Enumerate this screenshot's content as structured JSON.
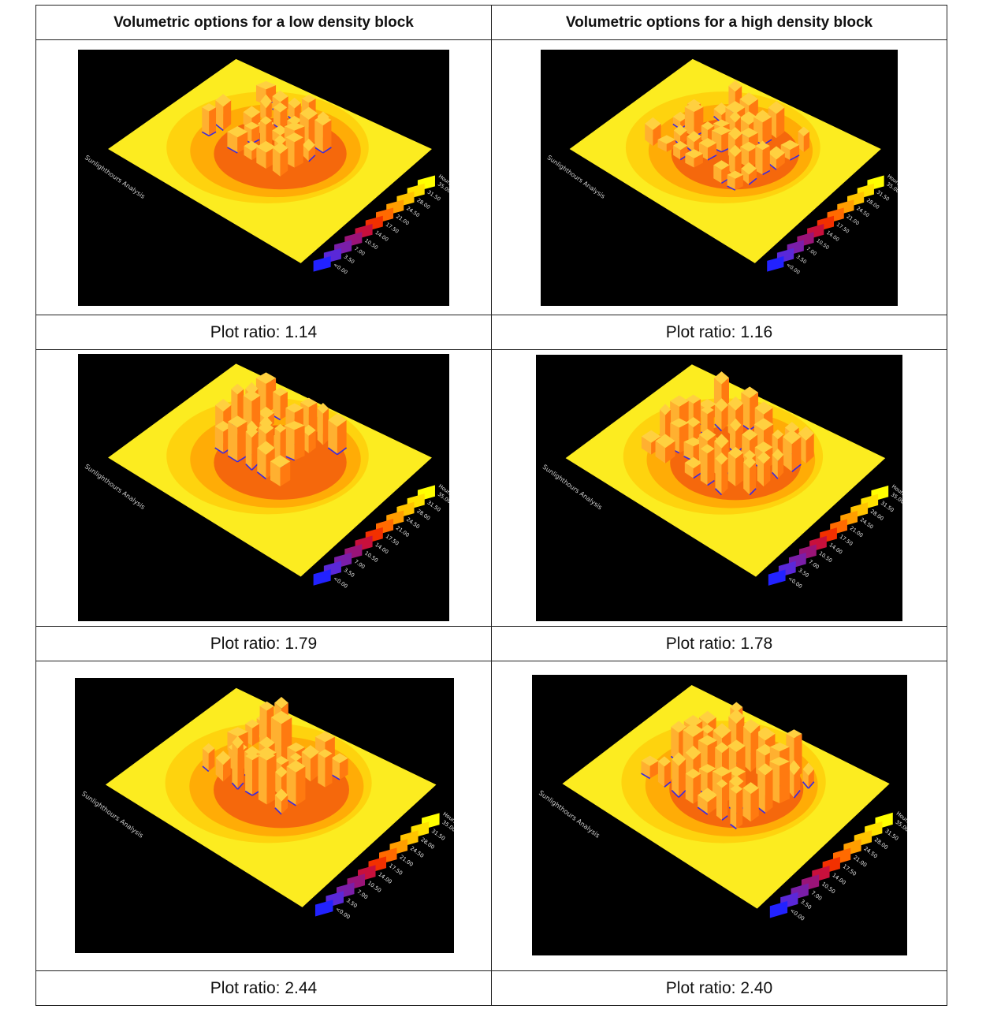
{
  "table": {
    "headers": [
      "Volumetric options for a low density block",
      "Volumetric options for a high density block"
    ],
    "rows": [
      {
        "low_caption": "Plot ratio: 1.14",
        "high_caption": "Plot ratio: 1.16"
      },
      {
        "low_caption": "Plot ratio: 1.79",
        "high_caption": "Plot ratio: 1.78"
      },
      {
        "low_caption": "Plot ratio: 2.44",
        "high_caption": "Plot ratio: 2.40"
      }
    ]
  },
  "panel": {
    "analysis_title": "Sunlighthours Analysis",
    "legend_unit": "Hours",
    "legend_labels": [
      "35.00<",
      "31.50",
      "28.00",
      "24.50",
      "21.00",
      "17.50",
      "14.00",
      "10.50",
      "7.00",
      "3.50",
      "<0.00"
    ],
    "legend_colors": [
      "#ffff00",
      "#ffe200",
      "#ffc400",
      "#ff9e00",
      "#ff6a00",
      "#f23000",
      "#c8103c",
      "#9a1478",
      "#7a1ea8",
      "#5a28d8",
      "#2222ff"
    ],
    "colors": {
      "background": "#000000",
      "ground": "#fcec20",
      "building_top": "#ffb030",
      "building_side": "#ff7a10",
      "shadow": "#ee3a10",
      "deep_shadow": "#3a2ae0"
    }
  }
}
